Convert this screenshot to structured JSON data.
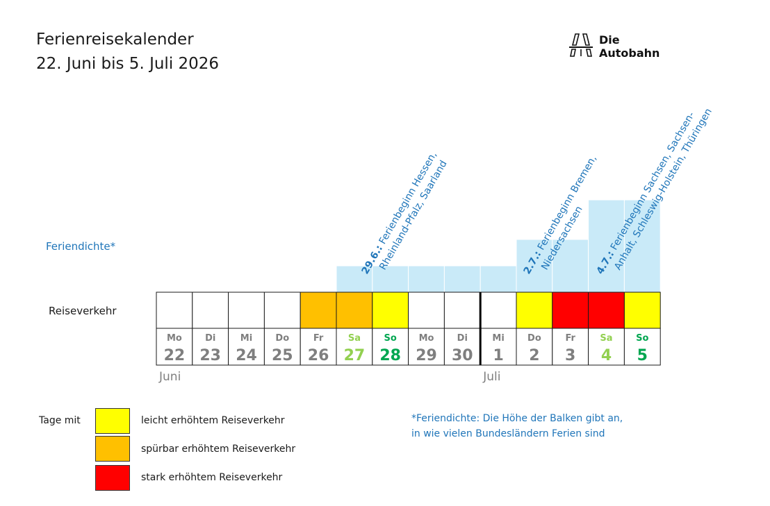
{
  "title": {
    "line1": "Ferienreisekalender",
    "line2": "22. Juni bis 5. Juli 2026"
  },
  "logo": {
    "line1": "Die",
    "line2": "Autobahn"
  },
  "labels": {
    "feriendichte": "Feriendichte*",
    "reiseverkehr": "Reiseverkehr"
  },
  "colors": {
    "none": "#ffffff",
    "leicht": "#ffff00",
    "spuerbar": "#ffc000",
    "stark": "#ff0000",
    "density": "#c9eaf8",
    "weekday_text": "#7f7f7f",
    "saturday_text": "#92d050",
    "sunday_text": "#00a650",
    "annotation": "#1f75b9"
  },
  "chart_data": {
    "type": "table",
    "days": [
      {
        "weekday": "Mo",
        "day": "22",
        "kind": "weekday",
        "traffic": "none",
        "density": 0
      },
      {
        "weekday": "Di",
        "day": "23",
        "kind": "weekday",
        "traffic": "none",
        "density": 0
      },
      {
        "weekday": "Mi",
        "day": "24",
        "kind": "weekday",
        "traffic": "none",
        "density": 0
      },
      {
        "weekday": "Do",
        "day": "25",
        "kind": "weekday",
        "traffic": "none",
        "density": 0
      },
      {
        "weekday": "Fr",
        "day": "26",
        "kind": "weekday",
        "traffic": "spuerbar",
        "density": 0
      },
      {
        "weekday": "Sa",
        "day": "27",
        "kind": "saturday",
        "traffic": "spuerbar",
        "density": 1
      },
      {
        "weekday": "So",
        "day": "28",
        "kind": "sunday",
        "traffic": "leicht",
        "density": 1
      },
      {
        "weekday": "Mo",
        "day": "29",
        "kind": "weekday",
        "traffic": "none",
        "density": 1
      },
      {
        "weekday": "Di",
        "day": "30",
        "kind": "weekday",
        "traffic": "none",
        "density": 1
      },
      {
        "weekday": "Mi",
        "day": "1",
        "kind": "weekday",
        "traffic": "none",
        "density": 1
      },
      {
        "weekday": "Do",
        "day": "2",
        "kind": "weekday",
        "traffic": "leicht",
        "density": 2
      },
      {
        "weekday": "Fr",
        "day": "3",
        "kind": "weekday",
        "traffic": "stark",
        "density": 2
      },
      {
        "weekday": "Sa",
        "day": "4",
        "kind": "saturday",
        "traffic": "stark",
        "density": 3.5
      },
      {
        "weekday": "So",
        "day": "5",
        "kind": "sunday",
        "traffic": "leicht",
        "density": 3.5
      }
    ],
    "months": [
      {
        "label": "Juni",
        "start_index": 0
      },
      {
        "label": "Juli",
        "start_index": 9
      }
    ],
    "annotations": [
      {
        "day_index": 5,
        "date": "29.6.:",
        "line1": " Ferienbeginn Hessen,",
        "line2": "Rheinland-Pfalz, Saarland"
      },
      {
        "day_index": 10,
        "date": "2.7.:",
        "line1": " Ferienbeginn Bremen,",
        "line2": "Niedersachsen"
      },
      {
        "day_index": 12,
        "date": "4.7.:",
        "line1": " Ferienbeginn Sachsen, Sachsen-",
        "line2": "Anhalt, Schleswig-Holstein, Thüringen"
      }
    ]
  },
  "legend": {
    "prefix": "Tage mit",
    "items": [
      {
        "key": "leicht",
        "color": "#ffff00",
        "label": "leicht erhöhtem Reiseverkehr"
      },
      {
        "key": "spuerbar",
        "color": "#ffc000",
        "label": "spürbar erhöhtem Reiseverkehr"
      },
      {
        "key": "stark",
        "color": "#ff0000",
        "label": "stark erhöhtem Reiseverkehr"
      }
    ]
  },
  "note": {
    "line1": "*Feriendichte: Die Höhe der Balken gibt an,",
    "line2": "in wie vielen Bundesländern Ferien sind"
  }
}
